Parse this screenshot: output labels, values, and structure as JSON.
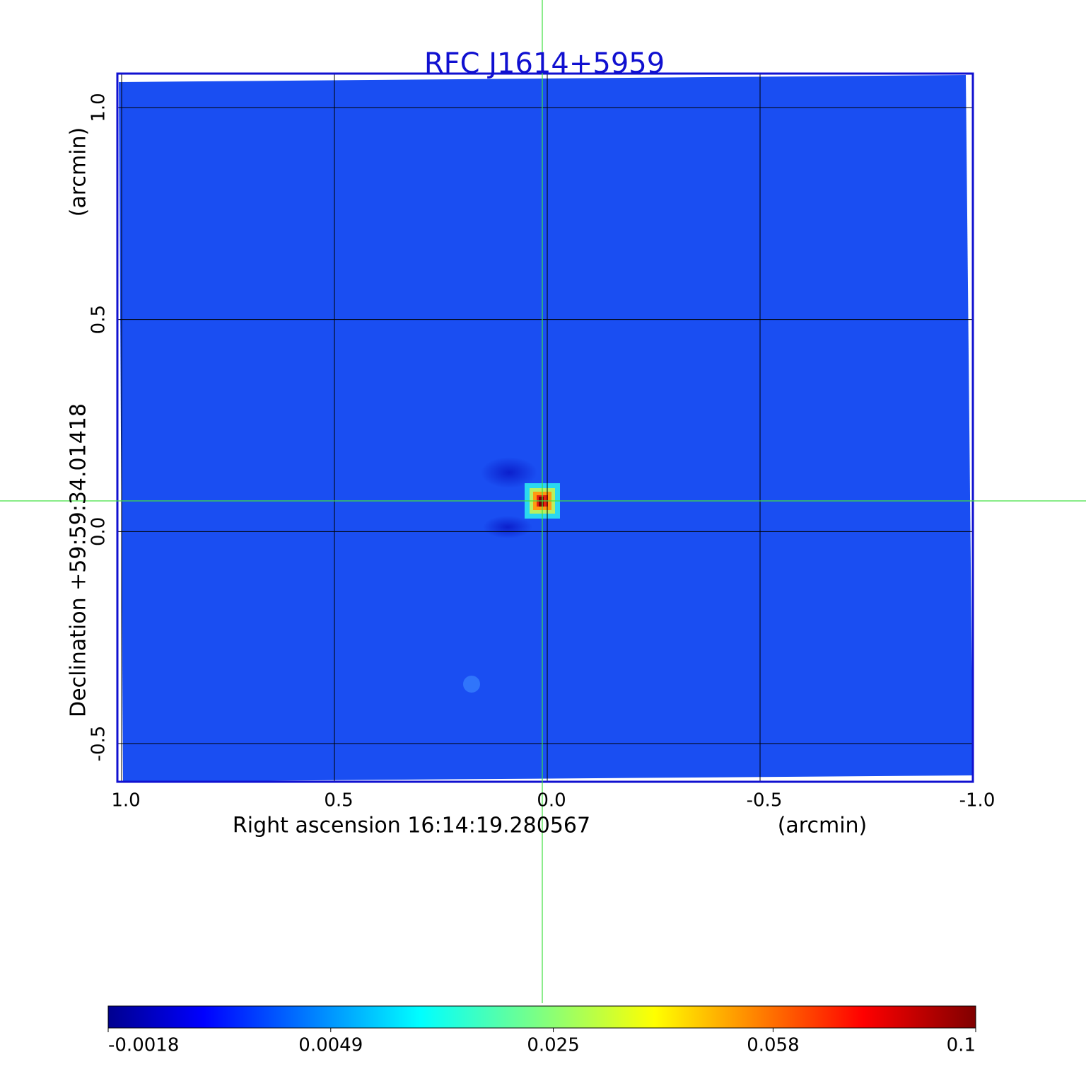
{
  "chart_data": {
    "type": "image",
    "title": "RFC J1614+5959",
    "x_label": "Right ascension  16:14:19.280567",
    "x_unit": "(arcmin)",
    "y_label": "Declination  +59:59:34.01418",
    "y_unit": "(arcmin)",
    "xlim": [
      1.01,
      -1.0
    ],
    "ylim": [
      -0.59,
      1.08
    ],
    "xticks": [
      {
        "value": 1,
        "label": "1.0"
      },
      {
        "value": 0.5,
        "label": "0.5"
      },
      {
        "value": 0,
        "label": "0.0"
      },
      {
        "value": -0.5,
        "label": "-0.5"
      },
      {
        "value": -1,
        "label": "-1.0"
      }
    ],
    "yticks": [
      {
        "value": 1,
        "label": "1.0"
      },
      {
        "value": 0.5,
        "label": "0.5"
      },
      {
        "value": 0,
        "label": "0.0"
      },
      {
        "value": -0.5,
        "label": "-0.5"
      }
    ],
    "grid": true,
    "clim": [
      -0.0018,
      0.1
    ],
    "colorbar_scale": "sqrt",
    "colorbar_ticks": [
      -0.0018,
      0.0049,
      0.025,
      0.058,
      0.1
    ]
  }
}
